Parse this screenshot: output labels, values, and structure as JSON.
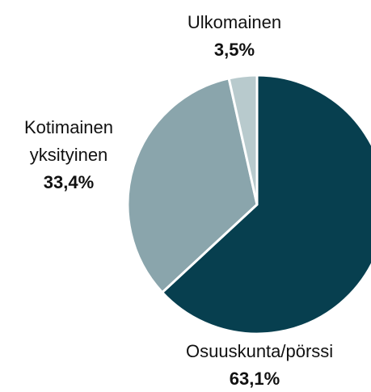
{
  "chart_data": {
    "type": "pie",
    "categories": [
      "Osuuskunta/pörssi",
      "Kotimainen yksityinen",
      "Ulkomainen"
    ],
    "values": [
      63.1,
      33.4,
      3.5
    ],
    "value_labels": [
      "63,1%",
      "33,4%",
      "3,5%"
    ],
    "colors": [
      "#073f4f",
      "#8aa5ac",
      "#b8cacd"
    ]
  }
}
